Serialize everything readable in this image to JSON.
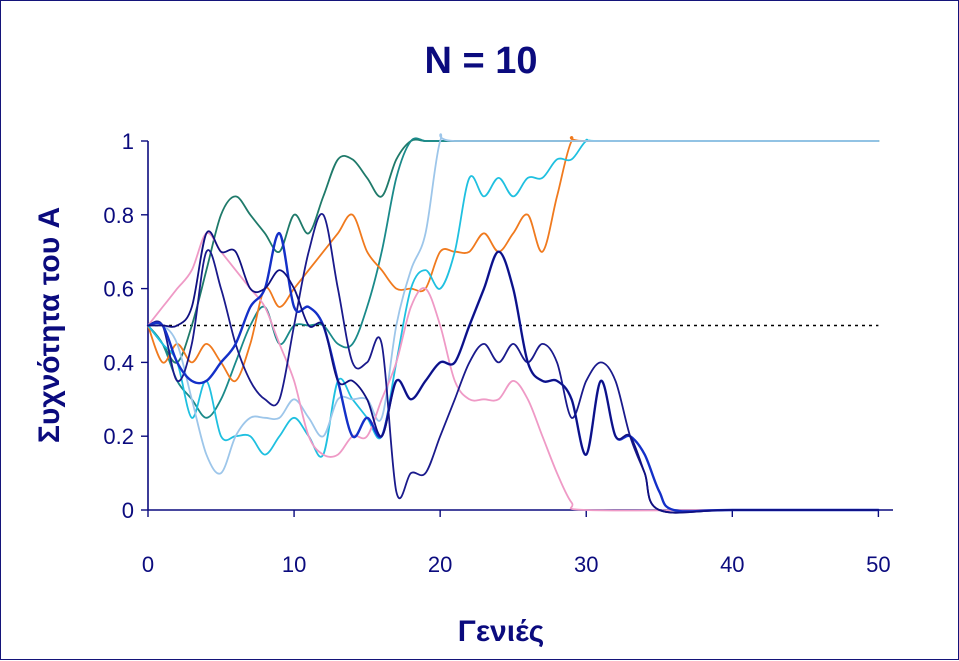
{
  "chart_data": {
    "type": "line",
    "title": "N = 10",
    "xlabel": "Γενιές",
    "ylabel": "Συχνότητα του A",
    "xlim": [
      0,
      51
    ],
    "ylim": [
      0,
      1
    ],
    "xticks": [
      "0",
      "10",
      "20",
      "30",
      "40",
      "50"
    ],
    "yticks": [
      "0",
      "0.2",
      "0.4",
      "0.6",
      "0.8",
      "1"
    ],
    "grid": false,
    "legend": "none",
    "reference_line": {
      "y": 0.5,
      "x_range": [
        0,
        50
      ],
      "style": "dotted",
      "color": "#000000"
    },
    "series": [
      {
        "color": "#1f7a6a",
        "x": [
          0,
          1,
          2,
          3,
          4,
          5,
          6,
          7,
          8,
          9,
          10,
          11,
          12,
          13,
          14,
          15,
          16,
          17,
          18,
          19,
          20,
          21,
          30,
          40,
          50
        ],
        "values": [
          0.5,
          0.45,
          0.4,
          0.5,
          0.65,
          0.8,
          0.85,
          0.8,
          0.75,
          0.7,
          0.8,
          0.75,
          0.85,
          0.95,
          0.95,
          0.9,
          0.85,
          0.95,
          1,
          1,
          1,
          1,
          1,
          1,
          1
        ]
      },
      {
        "color": "#1a8a8a",
        "x": [
          0,
          1,
          2,
          3,
          4,
          5,
          6,
          7,
          8,
          9,
          10,
          11,
          12,
          13,
          14,
          15,
          16,
          17,
          18,
          19,
          20,
          30,
          40,
          50
        ],
        "values": [
          0.5,
          0.45,
          0.35,
          0.3,
          0.25,
          0.3,
          0.4,
          0.5,
          0.55,
          0.45,
          0.5,
          0.5,
          0.5,
          0.45,
          0.45,
          0.55,
          0.7,
          0.9,
          1,
          1,
          1,
          1,
          1,
          1
        ]
      },
      {
        "color": "#f07a1e",
        "x": [
          0,
          1,
          2,
          3,
          4,
          5,
          6,
          7,
          8,
          9,
          10,
          11,
          12,
          13,
          14,
          15,
          16,
          17,
          18,
          19,
          20,
          21,
          22,
          23,
          24,
          25,
          26,
          27,
          28,
          29,
          30,
          40,
          50
        ],
        "values": [
          0.5,
          0.4,
          0.45,
          0.4,
          0.45,
          0.4,
          0.35,
          0.45,
          0.6,
          0.55,
          0.6,
          0.65,
          0.7,
          0.75,
          0.8,
          0.7,
          0.65,
          0.6,
          0.6,
          0.6,
          0.7,
          0.7,
          0.7,
          0.75,
          0.7,
          0.75,
          0.8,
          0.7,
          0.85,
          1,
          1,
          1,
          1
        ]
      },
      {
        "color": "#1fc0e0",
        "x": [
          0,
          1,
          2,
          3,
          4,
          5,
          6,
          7,
          8,
          9,
          10,
          11,
          12,
          13,
          14,
          15,
          16,
          17,
          18,
          19,
          20,
          21,
          22,
          23,
          24,
          25,
          26,
          27,
          28,
          29,
          30,
          31,
          40,
          50
        ],
        "values": [
          0.5,
          0.45,
          0.4,
          0.25,
          0.35,
          0.2,
          0.2,
          0.2,
          0.15,
          0.2,
          0.25,
          0.2,
          0.15,
          0.35,
          0.3,
          0.25,
          0.2,
          0.4,
          0.6,
          0.65,
          0.6,
          0.7,
          0.9,
          0.85,
          0.9,
          0.85,
          0.9,
          0.9,
          0.95,
          0.95,
          1,
          1,
          1,
          1
        ]
      },
      {
        "color": "#9dc6ea",
        "x": [
          0,
          1,
          2,
          3,
          4,
          5,
          6,
          7,
          8,
          9,
          10,
          11,
          12,
          13,
          14,
          15,
          16,
          17,
          18,
          19,
          20,
          21,
          30,
          40,
          50
        ],
        "values": [
          0.5,
          0.5,
          0.45,
          0.3,
          0.15,
          0.1,
          0.2,
          0.25,
          0.25,
          0.25,
          0.3,
          0.25,
          0.2,
          0.3,
          0.3,
          0.3,
          0.25,
          0.5,
          0.65,
          0.75,
          1,
          1,
          1,
          1,
          1
        ]
      },
      {
        "color": "#ef9ac6",
        "x": [
          0,
          1,
          2,
          3,
          4,
          5,
          6,
          7,
          8,
          9,
          10,
          11,
          12,
          13,
          14,
          15,
          16,
          17,
          18,
          19,
          20,
          21,
          22,
          23,
          24,
          25,
          26,
          27,
          28,
          29,
          30,
          40,
          50
        ],
        "values": [
          0.5,
          0.55,
          0.6,
          0.65,
          0.75,
          0.7,
          0.65,
          0.6,
          0.55,
          0.45,
          0.35,
          0.2,
          0.15,
          0.15,
          0.2,
          0.2,
          0.3,
          0.4,
          0.55,
          0.6,
          0.5,
          0.35,
          0.3,
          0.3,
          0.3,
          0.35,
          0.3,
          0.2,
          0.1,
          0.02,
          0,
          0,
          0
        ]
      },
      {
        "color": "#1a1a8c",
        "x": [
          0,
          1,
          2,
          3,
          4,
          5,
          6,
          7,
          8,
          9,
          10,
          11,
          12,
          13,
          14,
          15,
          16,
          17,
          18,
          19,
          20,
          21,
          22,
          23,
          24,
          25,
          26,
          27,
          28,
          29,
          30,
          31,
          32,
          33,
          34,
          35,
          40,
          50
        ],
        "values": [
          0.5,
          0.5,
          0.35,
          0.45,
          0.7,
          0.6,
          0.45,
          0.35,
          0.3,
          0.3,
          0.5,
          0.7,
          0.8,
          0.6,
          0.4,
          0.4,
          0.45,
          0.05,
          0.1,
          0.1,
          0.2,
          0.3,
          0.4,
          0.45,
          0.4,
          0.45,
          0.4,
          0.45,
          0.4,
          0.25,
          0.35,
          0.4,
          0.35,
          0.2,
          0.1,
          0,
          0,
          0
        ]
      },
      {
        "color": "#1430c8",
        "x": [
          0,
          1,
          2,
          3,
          4,
          5,
          6,
          7,
          8,
          9,
          10,
          11,
          12,
          13,
          14,
          15,
          16,
          17,
          18,
          19,
          20,
          21,
          22,
          23,
          24,
          25,
          26,
          27,
          28,
          29,
          30,
          31,
          32,
          33,
          34,
          35,
          36,
          40,
          50
        ],
        "values": [
          0.5,
          0.5,
          0.4,
          0.35,
          0.35,
          0.4,
          0.45,
          0.55,
          0.6,
          0.75,
          0.55,
          0.55,
          0.5,
          0.35,
          0.2,
          0.25,
          0.2,
          0.35,
          0.3,
          0.35,
          0.4,
          0.4,
          0.5,
          0.6,
          0.7,
          0.6,
          0.4,
          0.35,
          0.35,
          0.3,
          0.15,
          0.35,
          0.2,
          0.2,
          0.15,
          0.05,
          0,
          0,
          0
        ]
      },
      {
        "color": "#101080",
        "x": [
          0,
          1,
          2,
          3,
          4,
          5,
          6,
          7,
          8,
          9,
          10,
          11,
          12,
          13,
          14,
          15,
          16,
          17,
          18,
          19,
          20,
          21,
          22,
          23,
          24,
          25,
          26,
          27,
          28,
          29,
          30,
          31,
          32,
          33,
          34,
          35,
          40,
          50
        ],
        "values": [
          0.5,
          0.5,
          0.5,
          0.55,
          0.75,
          0.7,
          0.7,
          0.6,
          0.6,
          0.65,
          0.6,
          0.5,
          0.5,
          0.35,
          0.35,
          0.3,
          0.2,
          0.35,
          0.3,
          0.35,
          0.4,
          0.4,
          0.5,
          0.6,
          0.7,
          0.6,
          0.4,
          0.35,
          0.35,
          0.3,
          0.15,
          0.35,
          0.2,
          0.2,
          0.1,
          0,
          0,
          0
        ]
      }
    ]
  }
}
